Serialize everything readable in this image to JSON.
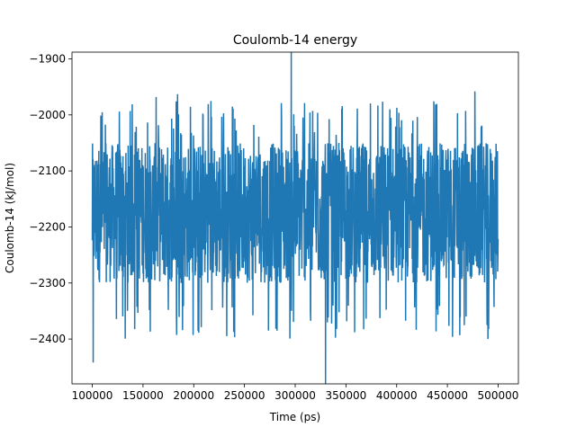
{
  "chart_data": {
    "type": "line",
    "title": "Coulomb-14 energy",
    "xlabel": "Time (ps)",
    "ylabel": "Coulomb-14 (kJ/mol)",
    "xlim": [
      80000,
      520000
    ],
    "ylim": [
      -2480,
      -1888
    ],
    "xticks": [
      100000,
      150000,
      200000,
      250000,
      300000,
      350000,
      400000,
      450000,
      500000
    ],
    "xtick_labels": [
      "100000",
      "150000",
      "200000",
      "250000",
      "300000",
      "350000",
      "400000",
      "450000",
      "500000"
    ],
    "yticks": [
      -1900,
      -2000,
      -2100,
      -2200,
      -2300,
      -2400
    ],
    "ytick_labels": [
      "−1900",
      "−2000",
      "−2100",
      "−2200",
      "−2300",
      "−2400"
    ],
    "grid": false,
    "legend": "none",
    "series": [
      {
        "color": "#1f77b4",
        "x_range": [
          100000,
          500000
        ],
        "approx_mean": -2190,
        "typical_range": [
          -2300,
          -2050
        ],
        "extremes": [
          {
            "x": 101000,
            "y": -2442
          },
          {
            "x": 163000,
            "y": -1968
          },
          {
            "x": 184000,
            "y": -1963
          },
          {
            "x": 296000,
            "y": -1888
          },
          {
            "x": 330000,
            "y": -2480
          },
          {
            "x": 477000,
            "y": -1958
          },
          {
            "x": 490000,
            "y": -2400
          }
        ]
      }
    ]
  },
  "colors": {
    "line": "#1f77b4",
    "axes": "#000000",
    "background": "#ffffff"
  }
}
